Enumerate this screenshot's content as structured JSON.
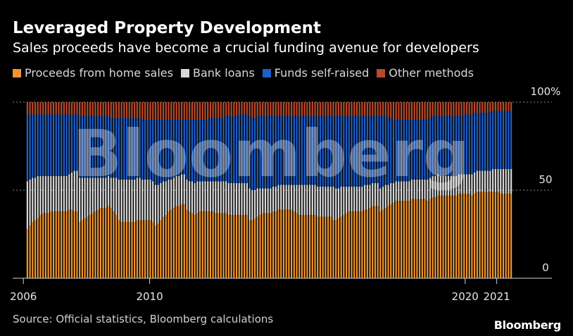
{
  "header": {
    "title": "Leveraged Property Development",
    "subtitle": "Sales proceeds have become a crucial funding avenue for developers"
  },
  "legend": [
    {
      "label": "Proceeds from home sales",
      "color": "#f0962e"
    },
    {
      "label": "Bank loans",
      "color": "#d9d9d9"
    },
    {
      "label": "Funds self-raised",
      "color": "#1f5fc9"
    },
    {
      "label": "Other methods",
      "color": "#b84a2a"
    }
  ],
  "footer": {
    "source": "Source: Official statistics, Bloomberg calculations",
    "brand": "Bloomberg"
  },
  "watermark": "Bloomberg",
  "chart_data": {
    "type": "bar",
    "stacked": true,
    "x_start": "2006-02",
    "x_end": "2021-07",
    "x_tick_labels": [
      "2006",
      "2010",
      "2020",
      "2021"
    ],
    "y_tick_labels": [
      "100%",
      "50",
      "0"
    ],
    "ylim": [
      0,
      100
    ],
    "grid": true,
    "legend_position": "top",
    "series": [
      {
        "name": "Proceeds from home sales",
        "color": "#f0962e",
        "values": [
          28,
          30,
          32,
          33,
          34,
          36,
          37,
          37,
          37,
          38,
          38,
          38,
          38,
          38,
          38,
          38,
          39,
          39,
          38,
          38,
          32,
          33,
          34,
          35,
          36,
          37,
          38,
          39,
          40,
          40,
          40,
          41,
          40,
          38,
          36,
          33,
          32,
          32,
          32,
          32,
          32,
          32,
          33,
          33,
          33,
          33,
          33,
          33,
          32,
          30,
          31,
          33,
          35,
          36,
          38,
          39,
          40,
          41,
          41,
          42,
          42,
          39,
          38,
          37,
          36,
          37,
          38,
          38,
          38,
          38,
          38,
          38,
          37,
          37,
          37,
          37,
          37,
          36,
          36,
          36,
          36,
          36,
          36,
          36,
          36,
          33,
          33,
          34,
          35,
          36,
          37,
          37,
          37,
          37,
          38,
          38,
          39,
          39,
          39,
          39,
          39,
          39,
          38,
          37,
          36,
          36,
          36,
          36,
          36,
          36,
          36,
          35,
          35,
          35,
          35,
          35,
          35,
          33,
          33,
          34,
          35,
          36,
          37,
          38,
          38,
          38,
          38,
          38,
          38,
          39,
          39,
          40,
          41,
          41,
          41,
          38,
          39,
          40,
          41,
          42,
          43,
          44,
          44,
          44,
          44,
          44,
          44,
          45,
          45,
          45,
          45,
          45,
          45,
          44,
          45,
          46,
          46,
          47,
          47,
          47,
          47,
          47,
          47,
          47,
          47,
          48,
          48,
          48,
          48,
          48,
          47,
          48,
          49,
          49,
          49,
          49,
          49,
          49,
          49,
          49,
          49,
          48,
          48,
          48,
          48,
          48
        ]
      },
      {
        "name": "Bank loans",
        "color": "#d9d9d9",
        "values": [
          27,
          26,
          25,
          24,
          24,
          22,
          21,
          21,
          21,
          20,
          20,
          20,
          20,
          20,
          20,
          20,
          20,
          21,
          23,
          23,
          25,
          24,
          23,
          22,
          21,
          20,
          19,
          18,
          17,
          17,
          17,
          17,
          17,
          19,
          21,
          23,
          24,
          24,
          24,
          24,
          24,
          24,
          24,
          24,
          23,
          23,
          23,
          23,
          23,
          23,
          22,
          21,
          20,
          19,
          18,
          17,
          17,
          17,
          17,
          17,
          17,
          17,
          17,
          18,
          18,
          18,
          17,
          17,
          17,
          17,
          17,
          17,
          18,
          18,
          18,
          18,
          18,
          18,
          18,
          18,
          18,
          18,
          18,
          18,
          18,
          18,
          17,
          16,
          16,
          15,
          14,
          14,
          14,
          14,
          14,
          14,
          14,
          14,
          14,
          14,
          14,
          14,
          15,
          16,
          17,
          17,
          17,
          17,
          17,
          17,
          17,
          17,
          17,
          17,
          17,
          17,
          17,
          19,
          18,
          17,
          17,
          16,
          15,
          14,
          14,
          14,
          14,
          14,
          14,
          14,
          14,
          13,
          13,
          13,
          13,
          13,
          13,
          13,
          12,
          12,
          11,
          11,
          11,
          11,
          11,
          11,
          11,
          11,
          11,
          11,
          11,
          11,
          11,
          12,
          12,
          12,
          12,
          12,
          11,
          11,
          11,
          11,
          11,
          11,
          11,
          11,
          11,
          11,
          11,
          11,
          12,
          12,
          12,
          12,
          12,
          12,
          12,
          12,
          13,
          13,
          13,
          14,
          14,
          14,
          14,
          14
        ]
      },
      {
        "name": "Funds self-raised",
        "color": "#1f5fc9",
        "values": [
          38,
          37,
          36,
          36,
          35,
          35,
          35,
          35,
          35,
          35,
          35,
          35,
          35,
          35,
          35,
          35,
          34,
          33,
          32,
          32,
          35,
          35,
          35,
          35,
          35,
          35,
          35,
          35,
          35,
          35,
          35,
          34,
          34,
          34,
          34,
          35,
          35,
          35,
          35,
          35,
          35,
          35,
          34,
          34,
          34,
          34,
          34,
          34,
          35,
          37,
          37,
          36,
          35,
          35,
          34,
          34,
          33,
          32,
          32,
          31,
          31,
          34,
          35,
          35,
          36,
          35,
          35,
          35,
          35,
          35,
          36,
          36,
          36,
          36,
          36,
          36,
          37,
          38,
          38,
          38,
          38,
          39,
          39,
          39,
          39,
          41,
          41,
          41,
          41,
          41,
          41,
          41,
          41,
          41,
          40,
          40,
          39,
          39,
          39,
          39,
          39,
          39,
          39,
          39,
          39,
          39,
          39,
          39,
          39,
          39,
          39,
          40,
          40,
          40,
          40,
          40,
          40,
          40,
          41,
          41,
          40,
          40,
          40,
          40,
          40,
          40,
          40,
          40,
          40,
          39,
          39,
          39,
          38,
          38,
          38,
          41,
          40,
          39,
          38,
          37,
          36,
          35,
          35,
          35,
          35,
          35,
          35,
          34,
          34,
          34,
          34,
          34,
          34,
          34,
          34,
          34,
          34,
          33,
          34,
          34,
          34,
          34,
          34,
          34,
          34,
          33,
          33,
          34,
          34,
          34,
          34,
          34,
          33,
          33,
          33,
          33,
          33,
          33,
          33,
          33,
          33,
          33,
          33,
          33,
          33,
          33
        ]
      },
      {
        "name": "Other methods",
        "color": "#b84a2a",
        "values": [
          7,
          7,
          7,
          7,
          7,
          7,
          7,
          7,
          7,
          7,
          7,
          7,
          7,
          7,
          7,
          7,
          7,
          7,
          7,
          7,
          8,
          8,
          8,
          8,
          8,
          8,
          8,
          8,
          8,
          8,
          8,
          8,
          9,
          9,
          9,
          9,
          9,
          9,
          9,
          9,
          9,
          9,
          9,
          9,
          10,
          10,
          10,
          10,
          10,
          10,
          10,
          10,
          10,
          10,
          10,
          10,
          10,
          10,
          10,
          10,
          10,
          10,
          10,
          10,
          10,
          10,
          10,
          10,
          10,
          10,
          9,
          9,
          9,
          9,
          9,
          9,
          8,
          8,
          8,
          8,
          8,
          7,
          7,
          7,
          7,
          8,
          9,
          9,
          8,
          8,
          8,
          8,
          8,
          8,
          8,
          8,
          8,
          8,
          8,
          8,
          8,
          8,
          8,
          8,
          8,
          8,
          8,
          8,
          8,
          8,
          8,
          8,
          8,
          8,
          8,
          8,
          8,
          8,
          8,
          8,
          8,
          8,
          8,
          8,
          8,
          8,
          8,
          8,
          8,
          8,
          8,
          8,
          8,
          8,
          8,
          8,
          8,
          8,
          9,
          9,
          10,
          10,
          10,
          10,
          10,
          10,
          10,
          10,
          10,
          10,
          10,
          10,
          10,
          10,
          9,
          8,
          8,
          8,
          8,
          8,
          8,
          8,
          8,
          8,
          8,
          8,
          8,
          7,
          7,
          7,
          7,
          6,
          6,
          6,
          6,
          6,
          6,
          6,
          5,
          5,
          5,
          5,
          5,
          5,
          5,
          5
        ]
      }
    ]
  }
}
